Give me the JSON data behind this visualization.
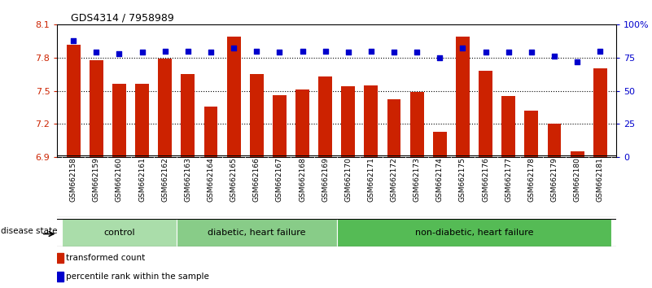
{
  "title": "GDS4314 / 7958989",
  "samples": [
    "GSM662158",
    "GSM662159",
    "GSM662160",
    "GSM662161",
    "GSM662162",
    "GSM662163",
    "GSM662164",
    "GSM662165",
    "GSM662166",
    "GSM662167",
    "GSM662168",
    "GSM662169",
    "GSM662170",
    "GSM662171",
    "GSM662172",
    "GSM662173",
    "GSM662174",
    "GSM662175",
    "GSM662176",
    "GSM662177",
    "GSM662178",
    "GSM662179",
    "GSM662180",
    "GSM662181"
  ],
  "bar_values": [
    7.92,
    7.78,
    7.56,
    7.56,
    7.79,
    7.65,
    7.36,
    7.99,
    7.65,
    7.46,
    7.51,
    7.63,
    7.54,
    7.55,
    7.42,
    7.49,
    7.13,
    7.99,
    7.68,
    7.45,
    7.32,
    7.2,
    6.95,
    7.7
  ],
  "dot_values": [
    88,
    79,
    78,
    79,
    80,
    80,
    79,
    82,
    80,
    79,
    80,
    80,
    79,
    80,
    79,
    79,
    75,
    82,
    79,
    79,
    79,
    76,
    72,
    80
  ],
  "ylim_left": [
    6.9,
    8.1
  ],
  "ylim_right": [
    0,
    100
  ],
  "yticks_left": [
    6.9,
    7.2,
    7.5,
    7.8,
    8.1
  ],
  "yticks_right": [
    0,
    25,
    50,
    75,
    100
  ],
  "ytick_labels_left": [
    "6.9",
    "7.2",
    "7.5",
    "7.8",
    "8.1"
  ],
  "ytick_labels_right": [
    "0",
    "25",
    "50",
    "75",
    "100%"
  ],
  "hlines": [
    7.8,
    7.5,
    7.2
  ],
  "bar_color": "#cc2200",
  "dot_color": "#0000cc",
  "groups": [
    {
      "label": "control",
      "start": 0,
      "end": 4,
      "color": "#aaddaa"
    },
    {
      "label": "diabetic, heart failure",
      "start": 5,
      "end": 11,
      "color": "#88cc88"
    },
    {
      "label": "non-diabetic, heart failure",
      "start": 12,
      "end": 23,
      "color": "#55bb55"
    }
  ],
  "legend_items": [
    {
      "label": "transformed count",
      "color": "#cc2200"
    },
    {
      "label": "percentile rank within the sample",
      "color": "#0000cc"
    }
  ],
  "disease_state_label": "disease state"
}
